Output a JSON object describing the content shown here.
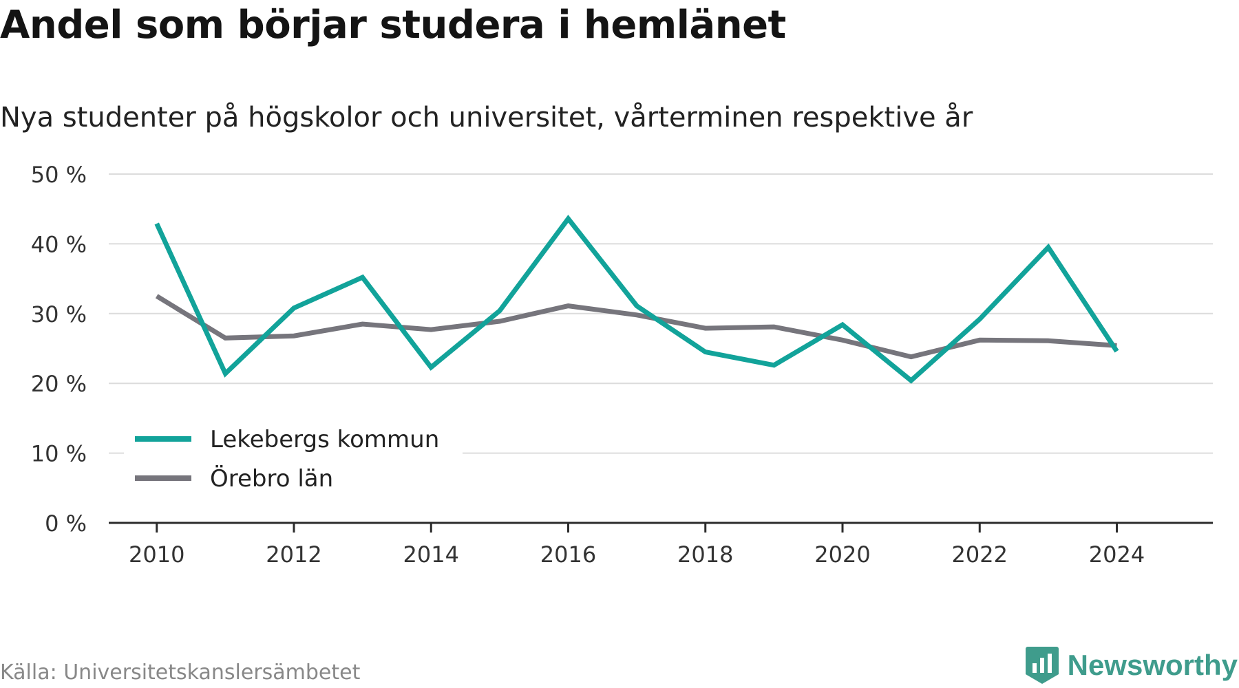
{
  "header": {
    "title": "Andel som börjar studera i hemlänet",
    "subtitle": "Nya studenter på högskolor och universitet, vårterminen respektive år"
  },
  "footer": {
    "source": "Källa: Universitetskanslersämbetet",
    "brand": "Newsworthy",
    "brand_icon": "newsworthy-logo-icon",
    "brand_color": "#3f9c8c"
  },
  "chart_data": {
    "type": "line",
    "title": "Andel som börjar studera i hemlänet",
    "subtitle": "Nya studenter på högskolor och universitet, vårterminen respektive år",
    "xlabel": "",
    "ylabel": "",
    "x": [
      2010,
      2011,
      2012,
      2013,
      2014,
      2015,
      2016,
      2017,
      2018,
      2019,
      2020,
      2021,
      2022,
      2023,
      2024
    ],
    "xlim": [
      2009.3,
      2025.4
    ],
    "xticks": [
      2010,
      2012,
      2014,
      2016,
      2018,
      2020,
      2022,
      2024
    ],
    "xtick_labels": [
      "2010",
      "2012",
      "2014",
      "2016",
      "2018",
      "2020",
      "2022",
      "2024"
    ],
    "ylim": [
      0,
      50
    ],
    "yticks": [
      0,
      10,
      20,
      30,
      40,
      50
    ],
    "ytick_labels": [
      "0 %",
      "10 %",
      "20 %",
      "30 %",
      "40 %",
      "50 %"
    ],
    "grid": true,
    "legend_position": "lower-left",
    "series": [
      {
        "name": "Lekebergs kommun",
        "color": "#12a39a",
        "values": [
          42.9,
          21.4,
          30.8,
          35.2,
          22.3,
          30.4,
          43.6,
          31.1,
          24.5,
          22.6,
          28.4,
          20.4,
          29.2,
          39.5,
          24.6
        ]
      },
      {
        "name": "Örebro län",
        "color": "#76757c",
        "values": [
          32.5,
          26.5,
          26.8,
          28.5,
          27.7,
          28.9,
          31.1,
          29.8,
          27.9,
          28.1,
          26.2,
          23.8,
          26.2,
          26.1,
          25.4
        ]
      }
    ]
  }
}
